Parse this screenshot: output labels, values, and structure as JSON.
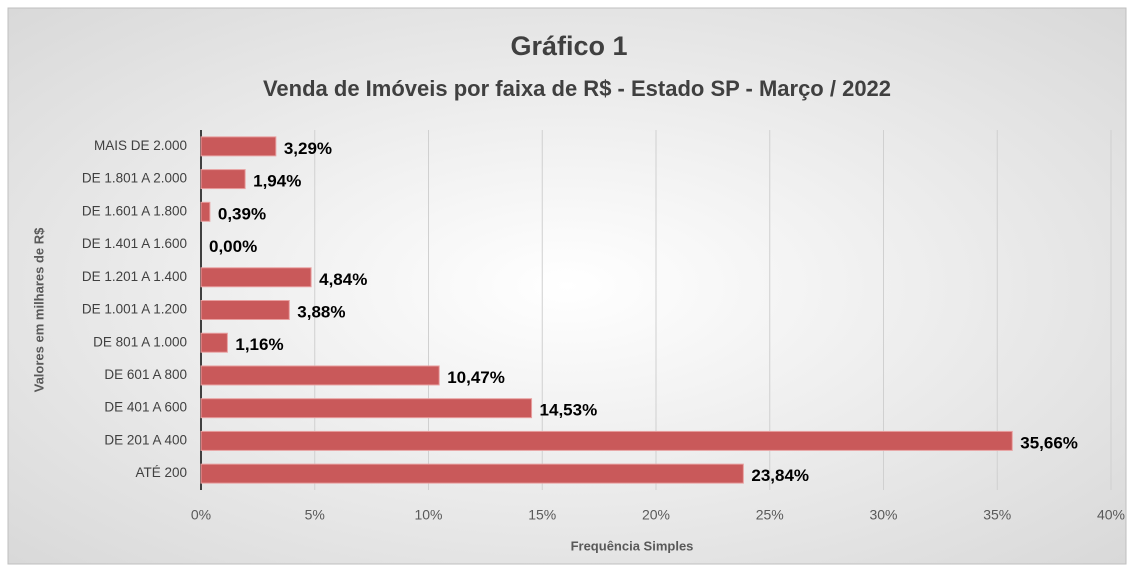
{
  "chart_data": {
    "type": "bar",
    "orientation": "horizontal",
    "title": "Gráfico 1",
    "subtitle": "Venda de Imóveis por faixa de R$ - Estado SP - Março / 2022",
    "x_label": "Frequência Simples",
    "y_label": "Valores em milhares de R$",
    "categories": [
      "MAIS DE 2.000",
      "DE 1.801 A 2.000",
      "DE 1.601 A 1.800",
      "DE 1.401 A 1.600",
      "DE 1.201 A 1.400",
      "DE 1.001 A 1.200",
      "DE 801 A 1.000",
      "DE 601 A 800",
      "DE 401 A 600",
      "DE 201 A 400",
      "ATÉ 200"
    ],
    "values": [
      3.29,
      1.94,
      0.39,
      0.0,
      4.84,
      3.88,
      1.16,
      10.47,
      14.53,
      35.66,
      23.84
    ],
    "value_labels": [
      "3,29%",
      "1,94%",
      "0,39%",
      "0,00%",
      "4,84%",
      "3,88%",
      "1,16%",
      "10,47%",
      "14,53%",
      "35,66%",
      "23,84%"
    ],
    "color": "#c9595a",
    "xlim": [
      0,
      40
    ],
    "xticks": [
      {
        "value": 0,
        "label": "0%"
      },
      {
        "value": 5,
        "label": "5%"
      },
      {
        "value": 10,
        "label": "10%"
      },
      {
        "value": 15,
        "label": "15%"
      },
      {
        "value": 20,
        "label": "20%"
      },
      {
        "value": 25,
        "label": "25%"
      },
      {
        "value": 30,
        "label": "30%"
      },
      {
        "value": 35,
        "label": "35%"
      },
      {
        "value": 40,
        "label": "40%"
      }
    ],
    "grid": true
  }
}
